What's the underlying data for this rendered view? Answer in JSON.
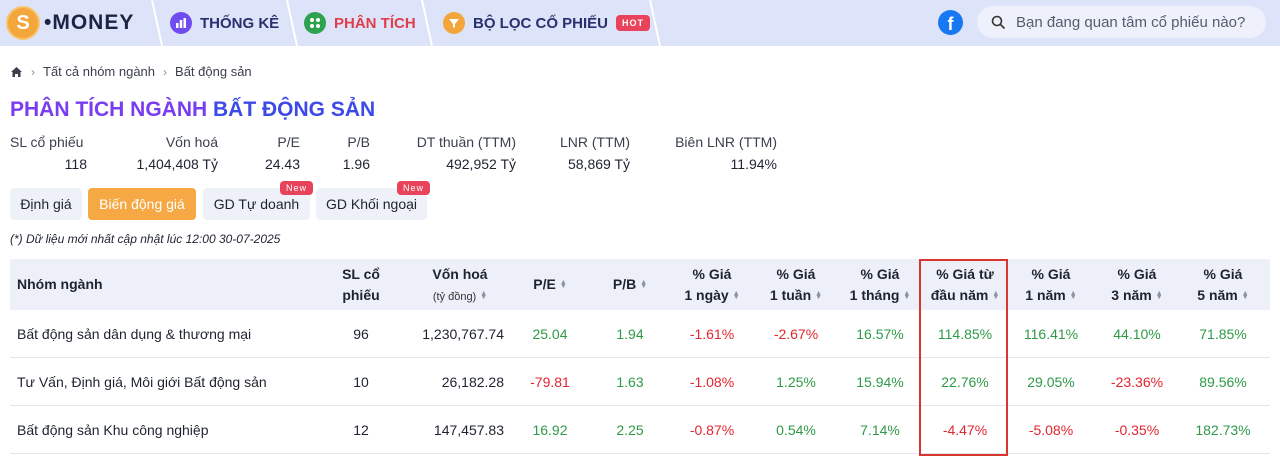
{
  "nav": {
    "logo_text": "•MONEY",
    "logo_symbol": "S",
    "items": [
      {
        "label": "THỐNG KÊ",
        "icon": "bar-chart-icon",
        "color": "#6f4cf0",
        "active": false
      },
      {
        "label": "PHÂN TÍCH",
        "icon": "analysis-icon",
        "color": "#2ea34f",
        "active": true
      },
      {
        "label": "BỘ LỌC CỔ PHIẾU",
        "icon": "filter-icon",
        "color": "#f3a63b",
        "active": false
      }
    ],
    "hot_badge": "HOT",
    "search_placeholder": "Bạn đang quan tâm cổ phiếu nào?"
  },
  "breadcrumb": {
    "items": [
      "Tất cả nhóm ngành",
      "Bất động sản"
    ]
  },
  "title": {
    "prefix": "PHÂN TÍCH NGÀNH",
    "highlight": "BẤT ĐỘNG SẢN"
  },
  "stats": [
    {
      "label": "SL cổ phiếu",
      "value": "118"
    },
    {
      "label": "Vốn hoá",
      "value": "1,404,408 Tỷ"
    },
    {
      "label": "P/E",
      "value": "24.43"
    },
    {
      "label": "P/B",
      "value": "1.96"
    },
    {
      "label": "DT thuần (TTM)",
      "value": "492,952 Tỷ"
    },
    {
      "label": "LNR (TTM)",
      "value": "58,869 Tỷ"
    },
    {
      "label": "Biên LNR (TTM)",
      "value": "11.94%"
    }
  ],
  "tabs": [
    {
      "label": "Định giá",
      "active": false,
      "badge": ""
    },
    {
      "label": "Biến động giá",
      "active": true,
      "badge": ""
    },
    {
      "label": "GD Tự doanh",
      "active": false,
      "badge": "New"
    },
    {
      "label": "GD Khối ngoại",
      "active": false,
      "badge": "New"
    }
  ],
  "note": "(*) Dữ liệu mới nhất cập nhật lúc 12:00 30-07-2025",
  "table": {
    "headers": [
      {
        "l1": "Nhóm ngành",
        "l2": ""
      },
      {
        "l1": "SL cổ",
        "l2": "phiếu"
      },
      {
        "l1": "Vốn hoá",
        "l2": "(tỷ đồng)"
      },
      {
        "l1": "P/E",
        "l2": ""
      },
      {
        "l1": "P/B",
        "l2": ""
      },
      {
        "l1": "% Giá",
        "l2": "1 ngày"
      },
      {
        "l1": "% Giá",
        "l2": "1 tuần"
      },
      {
        "l1": "% Giá",
        "l2": "1 tháng"
      },
      {
        "l1": "% Giá từ",
        "l2": "đầu năm"
      },
      {
        "l1": "% Giá",
        "l2": "1 năm"
      },
      {
        "l1": "% Giá",
        "l2": "3 năm"
      },
      {
        "l1": "% Giá",
        "l2": "5 năm"
      }
    ],
    "rows": [
      [
        "Bất động sản dân dụng & thương mại",
        "96",
        "1,230,767.74",
        "25.04",
        "1.94",
        "-1.61%",
        "-2.67%",
        "16.57%",
        "114.85%",
        "116.41%",
        "44.10%",
        "71.85%"
      ],
      [
        "Tư Vấn, Định giá, Môi giới Bất động sản",
        "10",
        "26,182.28",
        "-79.81",
        "1.63",
        "-1.08%",
        "1.25%",
        "15.94%",
        "22.76%",
        "29.05%",
        "-23.36%",
        "89.56%"
      ],
      [
        "Bất động sản Khu công nghiệp",
        "12",
        "147,457.83",
        "16.92",
        "2.25",
        "-0.87%",
        "0.54%",
        "7.14%",
        "-4.47%",
        "-5.08%",
        "-0.35%",
        "182.73%"
      ]
    ]
  },
  "colors": {
    "positive": "#2e9a48",
    "negative": "#e0262f",
    "accent": "#f5a844",
    "highlight_border": "#d8372f"
  }
}
